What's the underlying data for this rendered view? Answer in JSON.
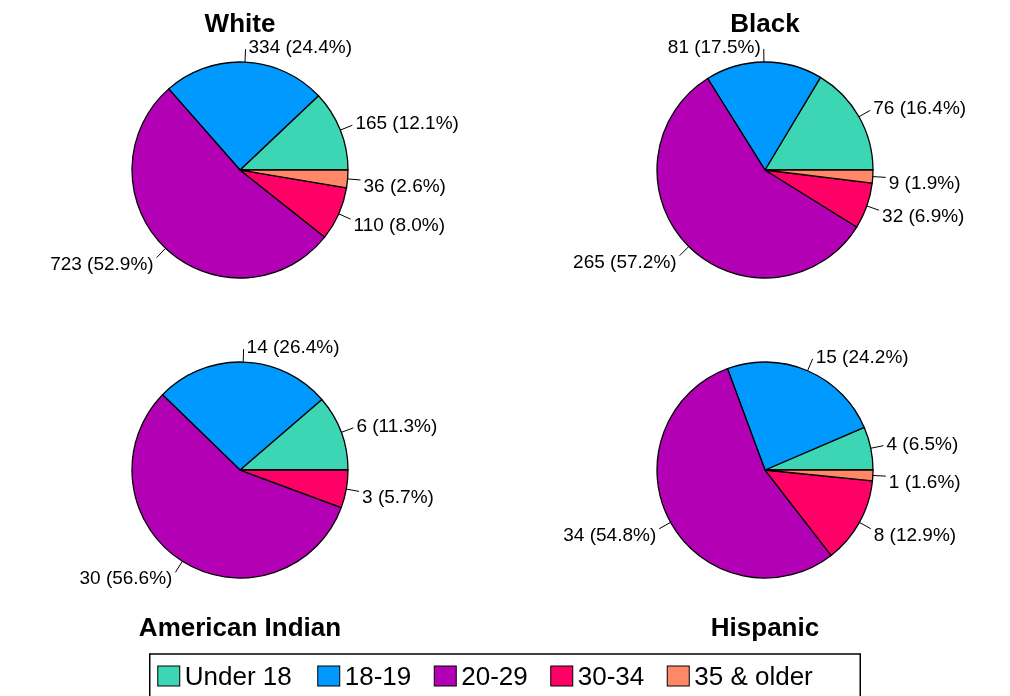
{
  "chart_data": [
    {
      "type": "pie",
      "title": "White",
      "categories": [
        "Under 18",
        "18-19",
        "20-29",
        "30-34",
        "35 & older"
      ],
      "values": [
        165,
        334,
        723,
        110,
        36
      ],
      "value_labels": [
        "165  (12.1%)",
        "334  (24.4%)",
        "723  (52.9%)",
        "110  (8.0%)",
        "36  (2.6%)"
      ],
      "colors": [
        "#3cd6b4",
        "#0099ff",
        "#b400b4",
        "#ff0066",
        "#ff8866"
      ],
      "legend": "bottom"
    },
    {
      "type": "pie",
      "title": "Black",
      "categories": [
        null,
        null,
        null,
        null,
        null
      ],
      "values": [
        76,
        81,
        265,
        32,
        9
      ],
      "value_labels": [
        "76  (16.4%)",
        "81  (17.5%)",
        "265  (57.2%)",
        "32  (6.9%)",
        "9  (1.9%)"
      ],
      "colors": [
        "#3cd6b4",
        "#0099ff",
        "#b400b4",
        "#ff0066",
        "#ff8866"
      ]
    },
    {
      "type": "pie",
      "title": "American Indian",
      "categories": [
        null,
        null,
        null,
        null,
        null
      ],
      "values": [
        6,
        14,
        30,
        3,
        0
      ],
      "value_labels": [
        "6  (11.3%)",
        "14  (26.4%)",
        "30  (56.6%)",
        "3  (5.7%)",
        null
      ],
      "colors": [
        "#3cd6b4",
        "#0099ff",
        "#b400b4",
        "#ff0066",
        "#ff8866"
      ]
    },
    {
      "type": "pie",
      "title": "Hispanic",
      "categories": [
        null,
        null,
        null,
        null,
        null
      ],
      "values": [
        4,
        15,
        34,
        8,
        1
      ],
      "value_labels": [
        "4  (6.5%)",
        "15  (24.2%)",
        "34  (54.8%)",
        "8  (12.9%)",
        "1  (1.6%)"
      ],
      "colors": [
        "#3cd6b4",
        "#0099ff",
        "#b400b4",
        "#ff0066",
        "#ff8866"
      ]
    }
  ]
}
